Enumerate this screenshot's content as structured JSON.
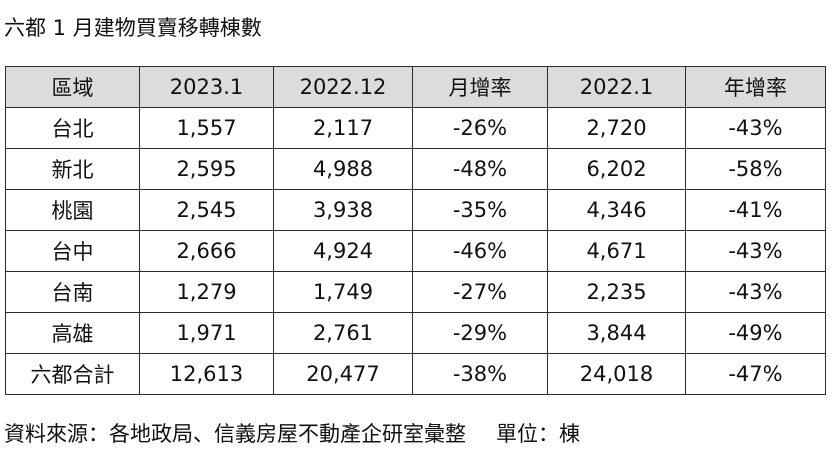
{
  "title": "六都 1 月建物買賣移轉棟數",
  "table": {
    "headers": [
      "區域",
      "2023.1",
      "2022.12",
      "月增率",
      "2022.1",
      "年增率"
    ],
    "rows": [
      [
        "台北",
        "1,557",
        "2,117",
        "-26%",
        "2,720",
        "-43%"
      ],
      [
        "新北",
        "2,595",
        "4,988",
        "-48%",
        "6,202",
        "-58%"
      ],
      [
        "桃園",
        "2,545",
        "3,938",
        "-35%",
        "4,346",
        "-41%"
      ],
      [
        "台中",
        "2,666",
        "4,924",
        "-46%",
        "4,671",
        "-43%"
      ],
      [
        "台南",
        "1,279",
        "1,749",
        "-27%",
        "2,235",
        "-43%"
      ],
      [
        "高雄",
        "1,971",
        "2,761",
        "-29%",
        "3,844",
        "-49%"
      ],
      [
        "六都合計",
        "12,613",
        "20,477",
        "-38%",
        "24,018",
        "-47%"
      ]
    ]
  },
  "footer": {
    "source": "資料來源：各地政局、信義房屋不動產企研室彙整",
    "unit": "單位：棟"
  },
  "colors": {
    "header_background": "#dcdcdc",
    "border": "#2b2b2b"
  }
}
